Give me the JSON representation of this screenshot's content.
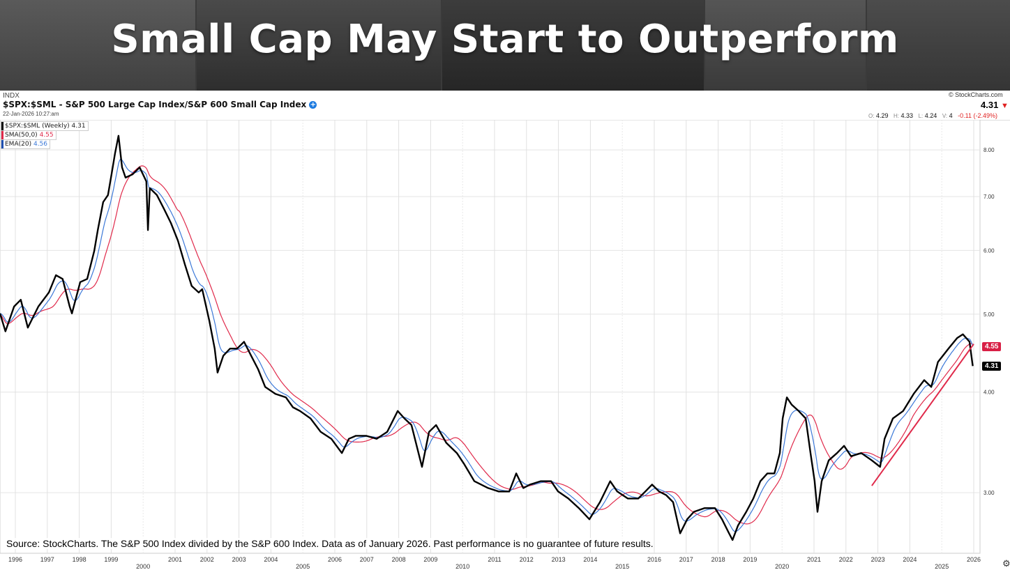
{
  "banner": {
    "title": "Small Cap May Start to Outperform"
  },
  "header": {
    "exchange": "INDX",
    "symbol_title": "$SPX:$SML - S&P 500 Large Cap Index/S&P 600 Small Cap Index",
    "timestamp": "22-Jan-2026 10:27:am",
    "brand": "© StockCharts.com",
    "last": "4.31",
    "ohlc": {
      "o_label": "O:",
      "o": "4.29",
      "h_label": "H:",
      "h": "4.33",
      "l_label": "L:",
      "l": "4.24",
      "v_label": "V:",
      "v": "4",
      "change": "-0.11 (-2.49%)"
    }
  },
  "legend": [
    {
      "label": "$SPX:$SML (Weekly)",
      "value": "4.31",
      "color": "#000000"
    },
    {
      "label": "SMA(50,0)",
      "value": "4.55",
      "color": "#e0294a"
    },
    {
      "label": "EMA(20)",
      "value": "4.56",
      "color": "#3b78d8"
    }
  ],
  "source_note": "Source: StockCharts. The S&P 500 Index divided by the S&P 600 Index. Data as of January 2026. Past performance is no guarantee of future results.",
  "chart_data": {
    "type": "line",
    "title": "$SPX:$SML - S&P 500 Large Cap Index/S&P 600 Small Cap Index",
    "xlabel": "",
    "ylabel": "",
    "y_scale": "log",
    "ylim": [
      2.6,
      8.9
    ],
    "xlim": [
      1995.5,
      2026.2
    ],
    "grid": true,
    "legend_placement": "top-left",
    "y_ticks": [
      "3.00",
      "4.00",
      "5.00",
      "6.00",
      "7.00",
      "8.00"
    ],
    "x_ticks": [
      {
        "year": 1996,
        "label": "1996",
        "major": false
      },
      {
        "year": 1997,
        "label": "1997",
        "major": false
      },
      {
        "year": 1998,
        "label": "1998",
        "major": false
      },
      {
        "year": 1999,
        "label": "1999",
        "major": false
      },
      {
        "year": 2000,
        "label": "2000",
        "major": true
      },
      {
        "year": 2001,
        "label": "2001",
        "major": false
      },
      {
        "year": 2002,
        "label": "2002",
        "major": false
      },
      {
        "year": 2003,
        "label": "2003",
        "major": false
      },
      {
        "year": 2004,
        "label": "2004",
        "major": false
      },
      {
        "year": 2005,
        "label": "2005",
        "major": true
      },
      {
        "year": 2006,
        "label": "2006",
        "major": false
      },
      {
        "year": 2007,
        "label": "2007",
        "major": false
      },
      {
        "year": 2008,
        "label": "2008",
        "major": false
      },
      {
        "year": 2009,
        "label": "2009",
        "major": false
      },
      {
        "year": 2010,
        "label": "2010",
        "major": true
      },
      {
        "year": 2011,
        "label": "2011",
        "major": false
      },
      {
        "year": 2012,
        "label": "2012",
        "major": false
      },
      {
        "year": 2013,
        "label": "2013",
        "major": false
      },
      {
        "year": 2014,
        "label": "2014",
        "major": false
      },
      {
        "year": 2015,
        "label": "2015",
        "major": true
      },
      {
        "year": 2016,
        "label": "2016",
        "major": false
      },
      {
        "year": 2017,
        "label": "2017",
        "major": false
      },
      {
        "year": 2018,
        "label": "2018",
        "major": false
      },
      {
        "year": 2019,
        "label": "2019",
        "major": false
      },
      {
        "year": 2020,
        "label": "2020",
        "major": true
      },
      {
        "year": 2021,
        "label": "2021",
        "major": false
      },
      {
        "year": 2022,
        "label": "2022",
        "major": false
      },
      {
        "year": 2023,
        "label": "2023",
        "major": false
      },
      {
        "year": 2024,
        "label": "2024",
        "major": false
      },
      {
        "year": 2025,
        "label": "2025",
        "major": true
      },
      {
        "year": 2026,
        "label": "2026",
        "major": false
      }
    ],
    "series": [
      {
        "name": "$SPX:$SML (Weekly)",
        "color": "#000000",
        "x": [
          1995.52,
          1995.69,
          1995.96,
          1996.17,
          1996.39,
          1996.72,
          1997.05,
          1997.27,
          1997.48,
          1997.7,
          1997.77,
          1998.03,
          1998.25,
          1998.47,
          1998.58,
          1998.75,
          1998.9,
          1999.01,
          1999.12,
          1999.23,
          1999.34,
          1999.45,
          1999.67,
          1999.89,
          2000.1,
          2000.15,
          2000.21,
          2000.43,
          2000.65,
          2000.87,
          2001.09,
          2001.31,
          2001.52,
          2001.74,
          2001.85,
          2002.07,
          2002.24,
          2002.33,
          2002.51,
          2002.72,
          2002.94,
          2003.16,
          2003.38,
          2003.6,
          2003.82,
          2004.14,
          2004.47,
          2004.69,
          2004.91,
          2005.24,
          2005.56,
          2005.89,
          2006.22,
          2006.44,
          2006.66,
          2006.98,
          2007.31,
          2007.64,
          2007.97,
          2008.18,
          2008.4,
          2008.62,
          2008.73,
          2008.95,
          2009.17,
          2009.49,
          2009.82,
          2010.04,
          2010.37,
          2010.8,
          2011.13,
          2011.46,
          2011.68,
          2011.9,
          2012.11,
          2012.44,
          2012.77,
          2012.99,
          2013.31,
          2013.64,
          2013.97,
          2014.3,
          2014.62,
          2014.84,
          2015.17,
          2015.5,
          2015.72,
          2015.93,
          2016.15,
          2016.37,
          2016.59,
          2016.81,
          2017.03,
          2017.24,
          2017.57,
          2017.9,
          2018.12,
          2018.34,
          2018.45,
          2018.62,
          2018.88,
          2019.1,
          2019.32,
          2019.54,
          2019.76,
          2019.93,
          2020.02,
          2020.15,
          2020.3,
          2020.52,
          2020.74,
          2020.89,
          2021.02,
          2021.11,
          2021.24,
          2021.46,
          2021.72,
          2021.94,
          2022.16,
          2022.48,
          2022.81,
          2023.07,
          2023.21,
          2023.47,
          2023.79,
          2024.12,
          2024.45,
          2024.67,
          2024.88,
          2025.21,
          2025.48,
          2025.66,
          2025.87,
          2025.97
        ],
        "values": [
          5.01,
          4.76,
          5.11,
          5.21,
          4.81,
          5.11,
          5.32,
          5.59,
          5.53,
          5.11,
          5.01,
          5.48,
          5.53,
          5.99,
          6.36,
          6.89,
          7.03,
          7.46,
          7.92,
          8.33,
          7.61,
          7.39,
          7.46,
          7.61,
          7.31,
          6.36,
          7.17,
          7.03,
          6.76,
          6.49,
          6.17,
          5.76,
          5.42,
          5.32,
          5.37,
          4.91,
          4.53,
          4.23,
          4.44,
          4.53,
          4.53,
          4.62,
          4.44,
          4.27,
          4.06,
          3.98,
          3.94,
          3.83,
          3.79,
          3.71,
          3.57,
          3.5,
          3.36,
          3.5,
          3.53,
          3.53,
          3.5,
          3.57,
          3.79,
          3.71,
          3.64,
          3.36,
          3.23,
          3.57,
          3.64,
          3.46,
          3.36,
          3.26,
          3.1,
          3.04,
          3.01,
          3.01,
          3.17,
          3.04,
          3.07,
          3.1,
          3.1,
          3.01,
          2.95,
          2.87,
          2.78,
          2.92,
          3.1,
          3.01,
          2.95,
          2.95,
          3.01,
          3.07,
          3.01,
          2.98,
          2.92,
          2.67,
          2.78,
          2.84,
          2.87,
          2.87,
          2.78,
          2.67,
          2.62,
          2.73,
          2.84,
          2.95,
          3.1,
          3.17,
          3.17,
          3.36,
          3.71,
          3.94,
          3.86,
          3.79,
          3.71,
          3.36,
          3.1,
          2.84,
          3.1,
          3.29,
          3.36,
          3.43,
          3.33,
          3.36,
          3.29,
          3.23,
          3.5,
          3.71,
          3.79,
          3.98,
          4.14,
          4.06,
          4.36,
          4.53,
          4.67,
          4.72,
          4.62,
          4.31
        ]
      },
      {
        "name": "SMA(50,0)",
        "color": "#e0294a",
        "method": "sma",
        "period_weeks": 50,
        "last": 4.55
      },
      {
        "name": "EMA(20)",
        "color": "#3b78d8",
        "method": "ema",
        "period_weeks": 20,
        "last": 4.56
      }
    ],
    "annotations": [
      {
        "type": "trendline",
        "color": "#e0294a",
        "from": [
          2022.81,
          3.06
        ],
        "to": [
          2026.0,
          4.59
        ]
      }
    ],
    "price_labels": [
      {
        "value": "4.55",
        "color": "#d81f45"
      },
      {
        "value": "4.31",
        "color": "#000000"
      }
    ]
  }
}
